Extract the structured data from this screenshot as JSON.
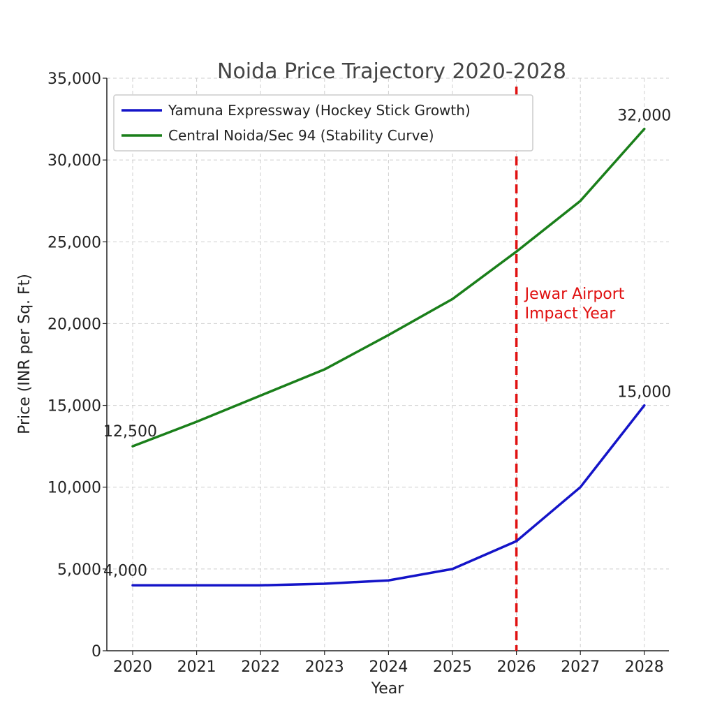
{
  "chart_data": {
    "type": "line",
    "title": "Noida Price Trajectory 2020-2028",
    "xlabel": "Year",
    "ylabel": "Price (INR per Sq. Ft)",
    "categories": [
      "2020",
      "2021",
      "2022",
      "2023",
      "2024",
      "2025",
      "2026",
      "2027",
      "2028"
    ],
    "ylim": [
      0,
      35000
    ],
    "yticks": [
      0,
      5000,
      10000,
      15000,
      20000,
      25000,
      30000,
      35000
    ],
    "ytick_labels": [
      "0",
      "5,000",
      "10,000",
      "15,000",
      "20,000",
      "25,000",
      "30,000",
      "35,000"
    ],
    "grid": true,
    "legend_position": "top-left",
    "series": [
      {
        "name": "Yamuna Expressway (Hockey Stick Growth)",
        "color": "#1414c8",
        "values": [
          4000,
          4000,
          4000,
          4100,
          4300,
          5000,
          6700,
          10000,
          15000
        ],
        "labels": [
          {
            "index": 0,
            "text": "4,000"
          },
          {
            "index": 8,
            "text": "15,000"
          }
        ]
      },
      {
        "name": "Central Noida/Sec 94 (Stability Curve)",
        "color": "#1a7f1a",
        "values": [
          12500,
          14000,
          15600,
          17200,
          19300,
          21500,
          24400,
          27500,
          31900
        ],
        "labels": [
          {
            "index": 0,
            "text": "12,500"
          },
          {
            "index": 8,
            "text": "32,000"
          }
        ]
      }
    ],
    "annotations": [
      {
        "type": "vline",
        "x": "2026",
        "color": "#e01010",
        "text_lines": [
          "Jewar Airport",
          "Impact Year"
        ]
      }
    ]
  }
}
